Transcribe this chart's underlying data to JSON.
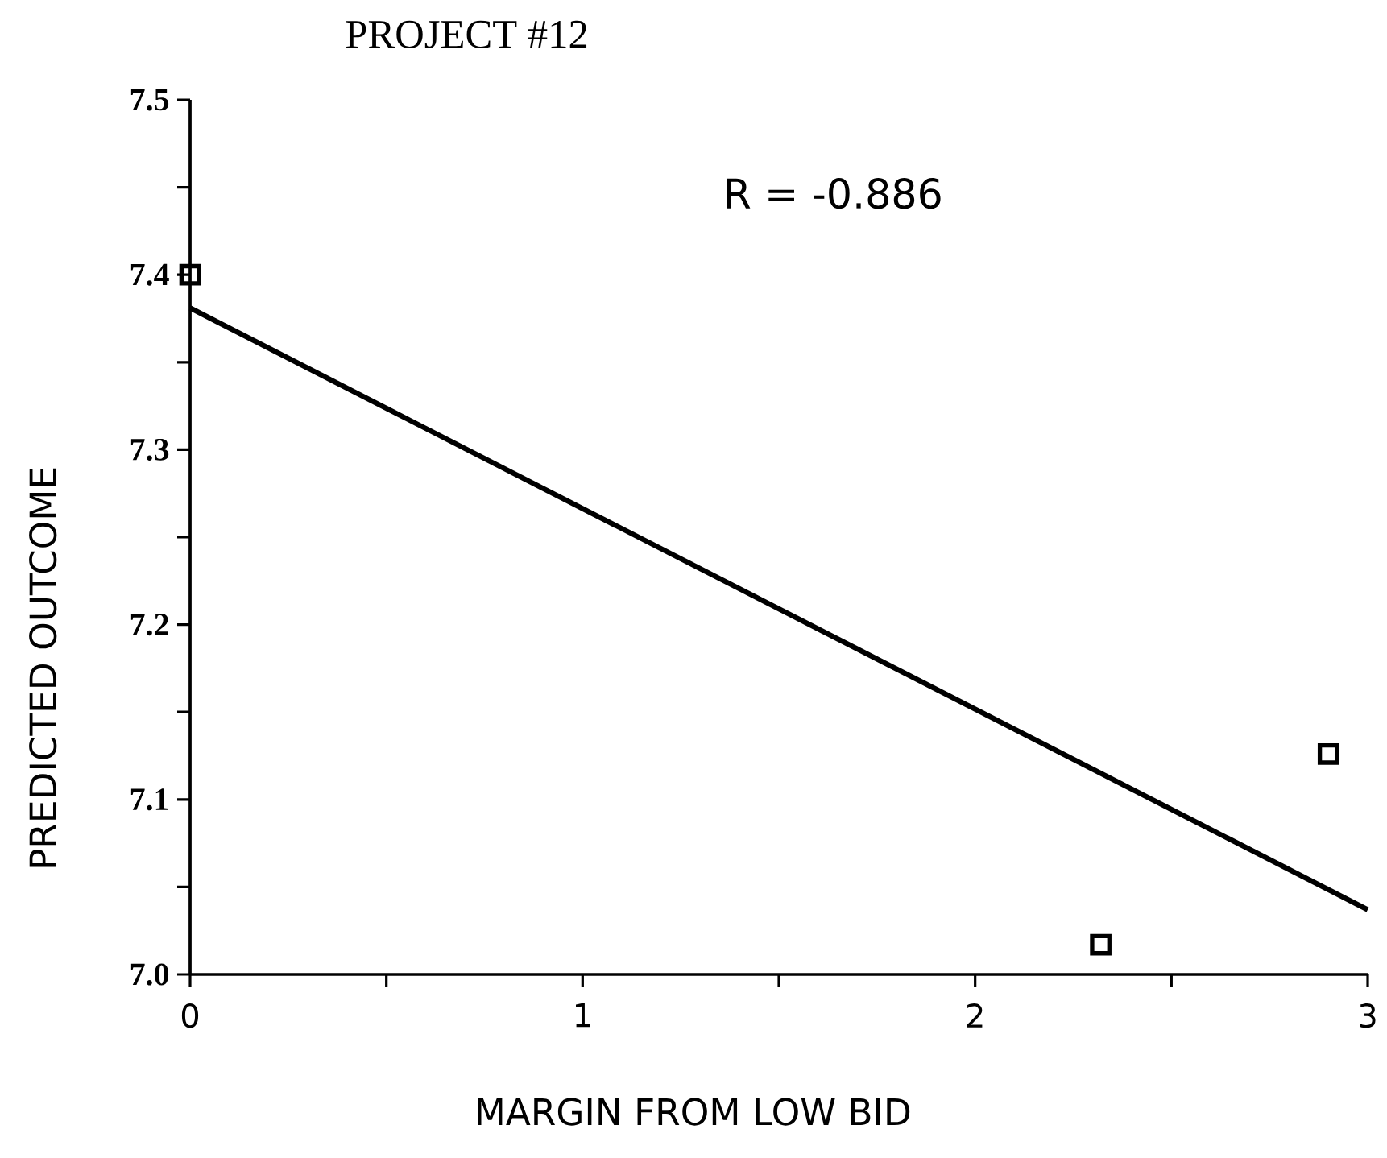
{
  "chart_data": {
    "type": "scatter",
    "title": "PROJECT #12",
    "xlabel": "MARGIN FROM LOW BID",
    "ylabel": "PREDICTED OUTCOME",
    "annotations": [
      "R = -0.886"
    ],
    "series": [
      {
        "color": "#000000",
        "marker": "square",
        "x": [
          0,
          2.32,
          2.9
        ],
        "values": [
          7.4,
          7.017,
          7.126
        ]
      },
      {
        "type": "line",
        "color": "#000000",
        "x": [
          0,
          3
        ],
        "values": [
          7.381,
          7.037
        ]
      }
    ],
    "grid": false,
    "xlim": [
      0,
      3
    ],
    "ylim": [
      7.0,
      7.5
    ],
    "xticks": [
      0,
      {
        "value": 0.5,
        "label": null
      },
      1,
      {
        "value": 1.5,
        "label": null
      },
      2,
      {
        "value": 2.5,
        "label": null
      },
      3
    ],
    "yticks": [
      {
        "value": 7.0,
        "label": "7.0"
      },
      {
        "value": 7.05,
        "label": null
      },
      7.1,
      {
        "value": 7.15,
        "label": null
      },
      7.2,
      {
        "value": 7.25,
        "label": null
      },
      7.3,
      {
        "value": 7.35,
        "label": null
      },
      7.4,
      {
        "value": 7.45,
        "label": null
      },
      7.5
    ]
  }
}
